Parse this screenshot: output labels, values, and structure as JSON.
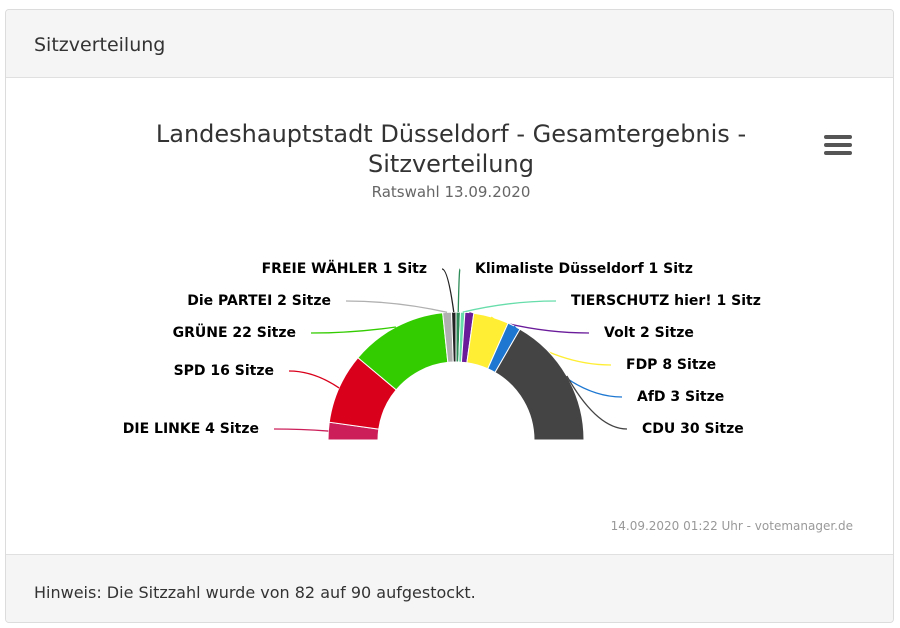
{
  "panel": {
    "title": "Sitzverteilung"
  },
  "footer": {
    "hint": "Hinweis: Die Sitzzahl wurde von 82 auf 90 aufgestockt."
  },
  "chart_data": {
    "type": "pie",
    "variant": "semi-donut (parliament)",
    "title": "Landeshauptstadt Düsseldorf - Gesamtergebnis - Sitzverteilung",
    "subtitle": "Ratswahl 13.09.2020",
    "credits": "14.09.2020 01:22 Uhr - votemanager.de",
    "total_seats": 90,
    "series": [
      {
        "name": "DIE LINKE",
        "value": 4,
        "label": "DIE LINKE 4 Sitze",
        "color": "#cc1f5a"
      },
      {
        "name": "SPD",
        "value": 16,
        "label": "SPD 16 Sitze",
        "color": "#d9001b"
      },
      {
        "name": "GRÜNE",
        "value": 22,
        "label": "GRÜNE 22 Sitze",
        "color": "#33cc00"
      },
      {
        "name": "Die PARTEI",
        "value": 2,
        "label": "Die PARTEI 2 Sitze",
        "color": "#b0b0b0"
      },
      {
        "name": "FREIE WÄHLER",
        "value": 1,
        "label": "FREIE WÄHLER 1 Sitz",
        "color": "#222222"
      },
      {
        "name": "Klimaliste Düsseldorf",
        "value": 1,
        "label": "Klimaliste Düsseldorf 1 Sitz",
        "color": "#2e8b57"
      },
      {
        "name": "TIERSCHUTZ hier!",
        "value": 1,
        "label": "TIERSCHUTZ hier! 1 Sitz",
        "color": "#66ddaa"
      },
      {
        "name": "Volt",
        "value": 2,
        "label": "Volt 2 Sitze",
        "color": "#6a1b9a"
      },
      {
        "name": "FDP",
        "value": 8,
        "label": "FDP 8 Sitze",
        "color": "#ffee33"
      },
      {
        "name": "AfD",
        "value": 3,
        "label": "AfD 3 Sitze",
        "color": "#1e78d2"
      },
      {
        "name": "CDU",
        "value": 30,
        "label": "CDU 30 Sitze",
        "color": "#444444"
      }
    ]
  },
  "icons": {
    "menu": "hamburger-menu-icon"
  }
}
